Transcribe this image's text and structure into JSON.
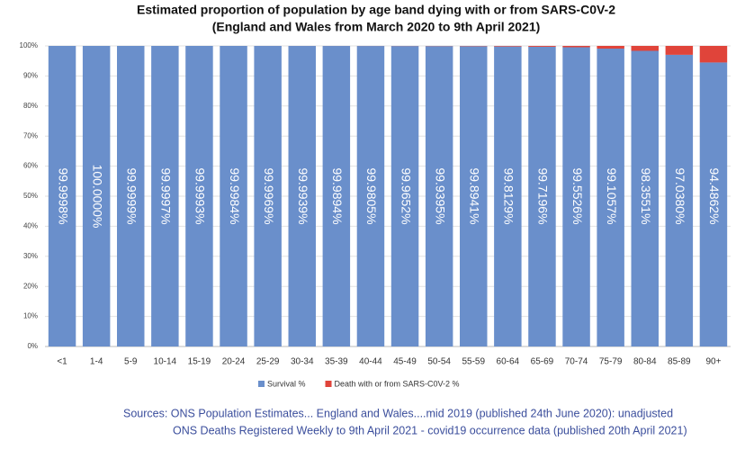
{
  "chart_data": {
    "type": "stacked_bar",
    "title": "Estimated proportion of population by age band dying with or from SARS-C0V-2",
    "subtitle": "(England and Wales from March 2020 to 9th April 2021)",
    "categories": [
      "<1",
      "1-4",
      "5-9",
      "10-14",
      "15-19",
      "20-24",
      "25-29",
      "30-34",
      "35-39",
      "40-44",
      "45-49",
      "50-54",
      "55-59",
      "60-64",
      "65-69",
      "70-74",
      "75-79",
      "80-84",
      "85-89",
      "90+"
    ],
    "series": [
      {
        "name": "Survival %",
        "color": "#6a8fcb",
        "values": [
          99.9998,
          100.0,
          99.9999,
          99.9997,
          99.9993,
          99.9984,
          99.9969,
          99.9939,
          99.9894,
          99.9805,
          99.9652,
          99.9395,
          99.8941,
          99.8129,
          99.7196,
          99.5526,
          99.1057,
          98.3551,
          97.038,
          94.4862
        ],
        "value_labels": [
          "99.9998%",
          "100.0000%",
          "99.9999%",
          "99.9997%",
          "99.9993%",
          "99.9984%",
          "99.9969%",
          "99.9939%",
          "99.9894%",
          "99.9805%",
          "99.9652%",
          "99.9395%",
          "99.8941%",
          "99.8129%",
          "99.7196%",
          "99.5526%",
          "99.1057%",
          "98.3551%",
          "97.0380%",
          "94.4862%"
        ]
      },
      {
        "name": "Death with or from SARS-C0V-2 %",
        "color": "#e0443a",
        "values": [
          0.0002,
          0.0,
          0.0001,
          0.0003,
          0.0007,
          0.0016,
          0.0031,
          0.0061,
          0.0106,
          0.0195,
          0.0348,
          0.0605,
          0.1059,
          0.1871,
          0.2804,
          0.4474,
          0.8943,
          1.6449,
          2.962,
          5.5138
        ]
      }
    ],
    "ylim": [
      0,
      100
    ],
    "yticks": [
      {
        "value": 0,
        "label": "0%"
      },
      {
        "value": 10,
        "label": "10%"
      },
      {
        "value": 20,
        "label": "20%"
      },
      {
        "value": 30,
        "label": "30%"
      },
      {
        "value": 40,
        "label": "40%"
      },
      {
        "value": 50,
        "label": "50%"
      },
      {
        "value": 60,
        "label": "60%"
      },
      {
        "value": 70,
        "label": "70%"
      },
      {
        "value": 80,
        "label": "80%"
      },
      {
        "value": 90,
        "label": "90%"
      },
      {
        "value": 100,
        "label": "100%"
      }
    ],
    "grid": true,
    "legend": "bottom",
    "sources": [
      "Sources:  ONS Population Estimates... England and Wales....mid 2019 (published 24th June 2020): unadjusted",
      "ONS Deaths Registered Weekly to 9th April 2021 - covid19 occurrence data (published 20th April 2021)"
    ]
  }
}
